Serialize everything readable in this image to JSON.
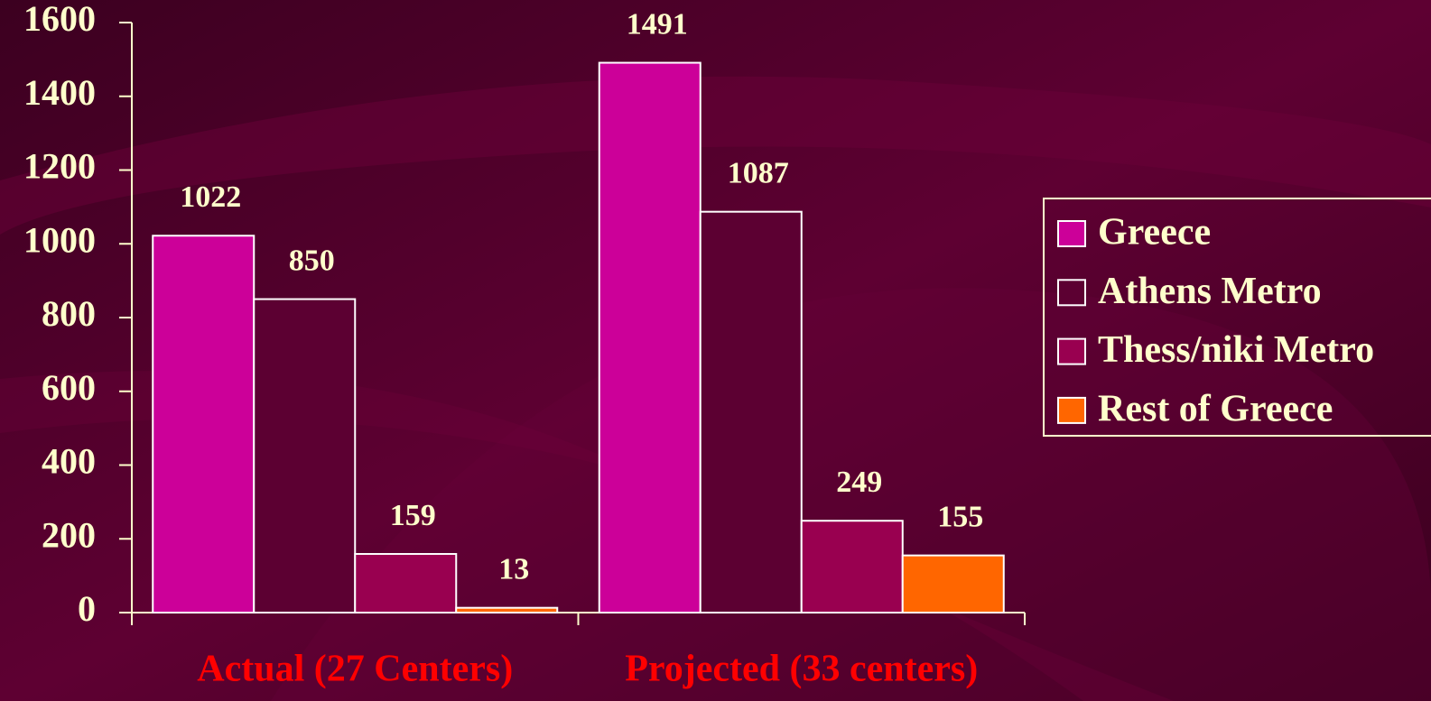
{
  "chart_data": {
    "type": "bar",
    "categories": [
      "Actual (27 Centers)",
      "Projected (33 centers)"
    ],
    "series": [
      {
        "name": "Greece",
        "color": "#cc0099",
        "values": [
          1022,
          1491
        ]
      },
      {
        "name": "Athens Metro",
        "color": "#5c0032",
        "values": [
          850,
          1087
        ]
      },
      {
        "name": "Thess/niki Metro",
        "color": "#990050",
        "values": [
          159,
          249
        ]
      },
      {
        "name": "Rest of Greece",
        "color": "#ff6600",
        "values": [
          13,
          155
        ]
      }
    ],
    "ylim": [
      0,
      1600
    ],
    "yticks": [
      0,
      200,
      400,
      600,
      800,
      1000,
      1200,
      1400,
      1600
    ],
    "legend": "right"
  }
}
